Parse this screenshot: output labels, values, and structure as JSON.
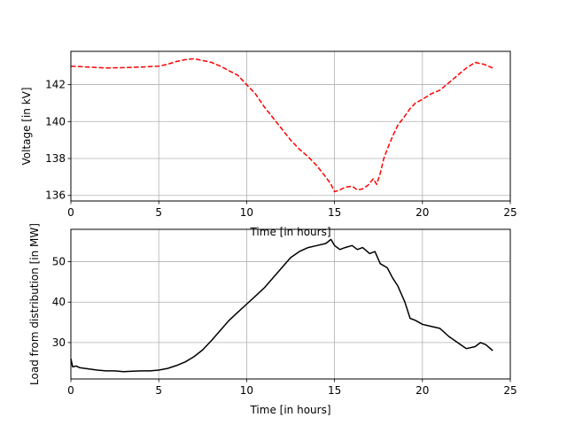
{
  "chart_data": [
    {
      "type": "line",
      "title": "",
      "xlabel": "Time [in hours]",
      "ylabel": "Voltage [in kV]",
      "xlim": [
        0,
        25
      ],
      "ylim": [
        135.7,
        143.8
      ],
      "xticks": [
        0,
        5,
        10,
        15,
        20,
        25
      ],
      "yticks": [
        136,
        138,
        140,
        142
      ],
      "grid": true,
      "series": [
        {
          "color": "#ff0000",
          "linestyle": "dashed",
          "x": [
            0,
            1,
            2,
            3,
            4,
            5,
            5.5,
            6,
            6.5,
            7,
            7.5,
            8,
            8.5,
            9,
            9.5,
            10,
            10.5,
            11,
            11.5,
            12,
            12.5,
            13,
            13.5,
            14,
            14.5,
            14.8,
            15,
            15.3,
            15.6,
            16,
            16.3,
            16.6,
            16.9,
            17.2,
            17.4,
            17.6,
            17.8,
            18,
            18.3,
            18.6,
            19,
            19.3,
            19.6,
            20,
            20.5,
            21,
            21.5,
            22,
            22.5,
            23,
            23.5,
            24
          ],
          "y": [
            143.0,
            142.95,
            142.9,
            142.92,
            142.95,
            143.0,
            143.1,
            143.25,
            143.35,
            143.4,
            143.3,
            143.2,
            143.0,
            142.75,
            142.5,
            142.0,
            141.5,
            140.8,
            140.2,
            139.6,
            139.0,
            138.5,
            138.1,
            137.6,
            137.0,
            136.6,
            136.2,
            136.3,
            136.45,
            136.5,
            136.3,
            136.35,
            136.55,
            136.9,
            136.6,
            137.2,
            138.0,
            138.5,
            139.2,
            139.8,
            140.3,
            140.7,
            141.0,
            141.2,
            141.5,
            141.7,
            142.1,
            142.5,
            142.9,
            143.2,
            143.1,
            142.9
          ]
        }
      ]
    },
    {
      "type": "line",
      "title": "",
      "xlabel": "Time [in hours]",
      "ylabel": "Load from distribution [in MW]",
      "xlim": [
        0,
        25
      ],
      "ylim": [
        21,
        58
      ],
      "xticks": [
        0,
        5,
        10,
        15,
        20,
        25
      ],
      "yticks": [
        30,
        40,
        50
      ],
      "grid": true,
      "series": [
        {
          "color": "#000000",
          "linestyle": "solid",
          "x": [
            0,
            0.1,
            0.3,
            0.5,
            1,
            1.5,
            2,
            2.5,
            3,
            3.5,
            4,
            4.5,
            5,
            5.5,
            6,
            6.5,
            7,
            7.5,
            8,
            8.5,
            9,
            9.5,
            10,
            10.5,
            11,
            11.5,
            12,
            12.5,
            13,
            13.5,
            14,
            14.5,
            14.8,
            15,
            15.3,
            15.6,
            16,
            16.3,
            16.6,
            17,
            17.3,
            17.6,
            18,
            18.3,
            18.6,
            19,
            19.3,
            19.6,
            20,
            20.5,
            21,
            21.5,
            22,
            22.5,
            23,
            23.3,
            23.6,
            24
          ],
          "y": [
            26.0,
            24.0,
            24.2,
            23.8,
            23.5,
            23.2,
            23.0,
            23.0,
            22.8,
            22.9,
            23.0,
            23.0,
            23.2,
            23.6,
            24.3,
            25.2,
            26.5,
            28.2,
            30.5,
            33.0,
            35.5,
            37.5,
            39.5,
            41.5,
            43.5,
            46.0,
            48.5,
            51.0,
            52.5,
            53.5,
            54.0,
            54.5,
            55.5,
            54.0,
            53.0,
            53.5,
            54.0,
            53.0,
            53.5,
            52.0,
            52.5,
            49.5,
            48.5,
            46.0,
            44.0,
            40.0,
            36.0,
            35.5,
            34.5,
            34.0,
            33.5,
            31.5,
            30.0,
            28.5,
            29.0,
            30.0,
            29.5,
            28.0
          ]
        }
      ]
    }
  ]
}
